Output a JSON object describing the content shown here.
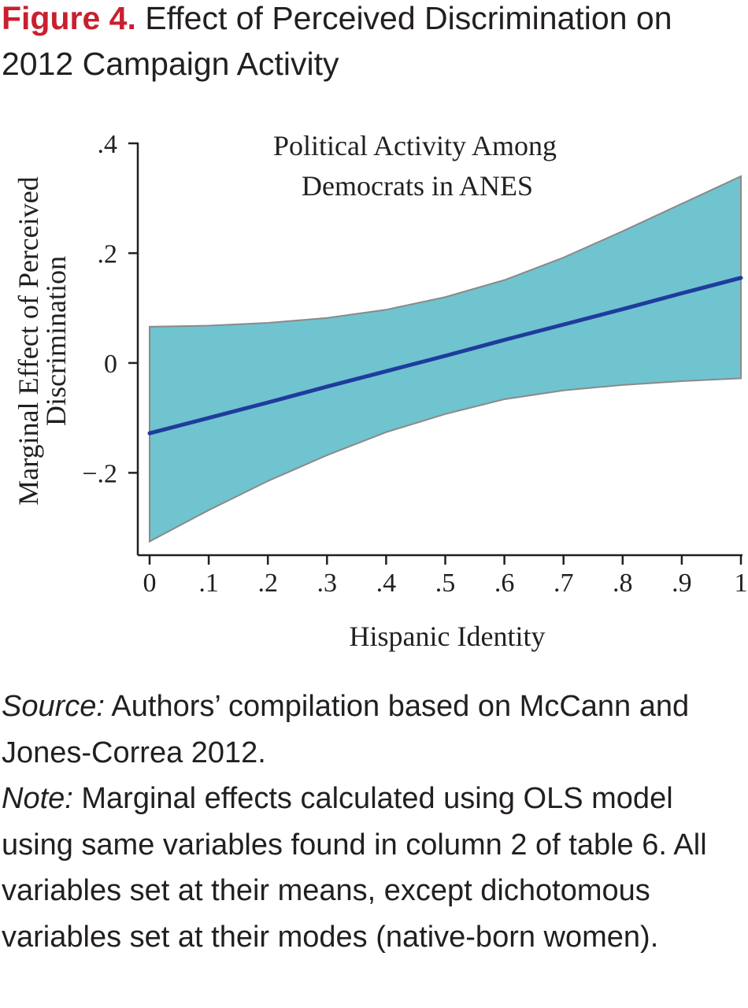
{
  "figure": {
    "label": "Figure 4.",
    "title": "Effect of Perceived Discrimination on 2012 Campaign Activity"
  },
  "chart_data": {
    "type": "line",
    "title_lines": [
      "Political Activity Among",
      "Democrats in ANES"
    ],
    "xlabel": "Hispanic Identity",
    "ylabel_lines": [
      "Marginal Effect of Perceived",
      "Discrimination"
    ],
    "xlim": [
      0,
      1
    ],
    "ylim": [
      -0.35,
      0.4
    ],
    "x_ticks": [
      0,
      0.1,
      0.2,
      0.3,
      0.4,
      0.5,
      0.6,
      0.7,
      0.8,
      0.9,
      1
    ],
    "x_tick_labels": [
      "0",
      ".1",
      ".2",
      ".3",
      ".4",
      ".5",
      ".6",
      ".7",
      ".8",
      ".9",
      "1"
    ],
    "y_ticks": [
      0.4,
      0.2,
      0,
      -0.2
    ],
    "y_tick_labels": [
      ".4",
      ".2",
      "0",
      "−.2"
    ],
    "grid": false,
    "legend": "none",
    "x": [
      0,
      0.1,
      0.2,
      0.3,
      0.4,
      0.5,
      0.6,
      0.7,
      0.8,
      0.9,
      1
    ],
    "series": [
      {
        "values": [
          -0.128,
          -0.1,
          -0.072,
          -0.043,
          -0.015,
          0.013,
          0.042,
          0.07,
          0.098,
          0.127,
          0.155
        ],
        "color": "#1f3c9c"
      }
    ],
    "band": {
      "upper": [
        0.066,
        0.068,
        0.073,
        0.082,
        0.097,
        0.12,
        0.151,
        0.192,
        0.24,
        0.29,
        0.34
      ],
      "lower": [
        -0.325,
        -0.268,
        -0.215,
        -0.168,
        -0.126,
        -0.093,
        -0.066,
        -0.05,
        -0.04,
        -0.033,
        -0.028
      ],
      "fill": "#6fc4cf",
      "edge": "#8a8a8a"
    },
    "axis_color": "#231f20"
  },
  "notes": {
    "source_label": "Source:",
    "source_text": " Authors’ compilation based on McCann and Jones-Correa 2012.",
    "note_label": "Note:",
    "note_text": " Marginal effects calculated using OLS model using same variables found in column 2 of table 6. All variables set at their means, except di­chotomous variables set at their modes (native-born women)."
  }
}
